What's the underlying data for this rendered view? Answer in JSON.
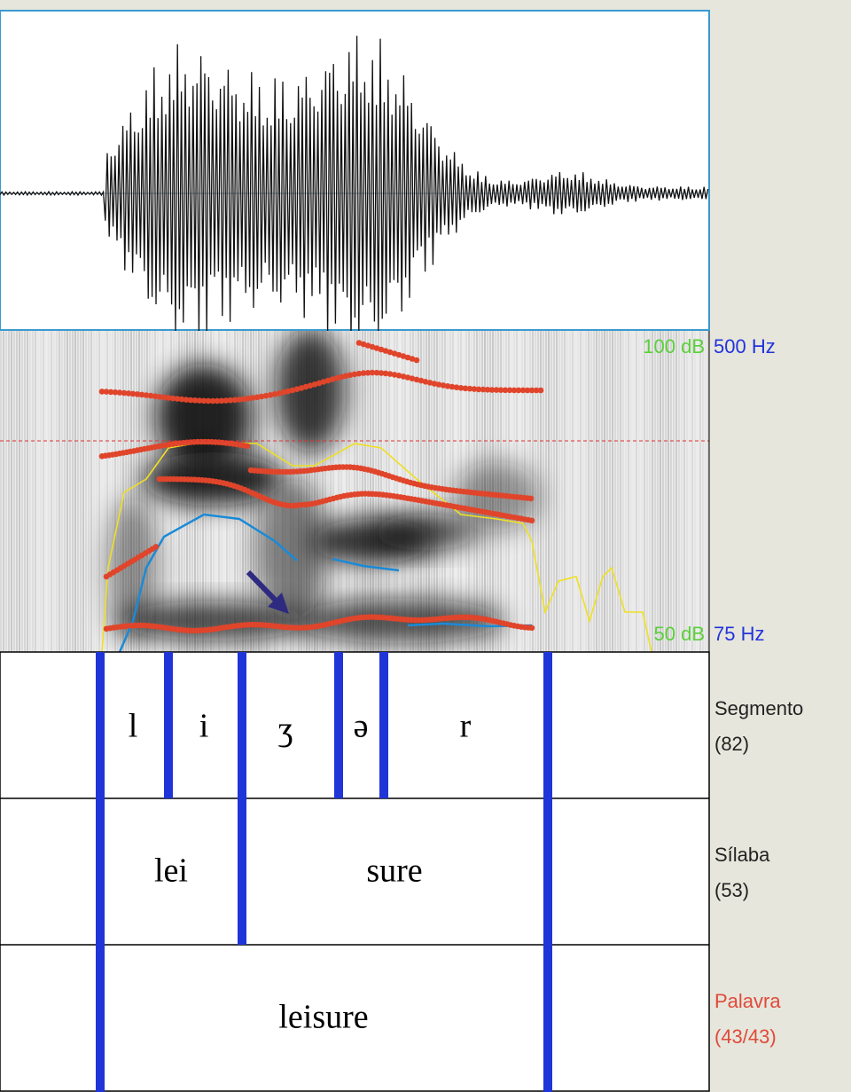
{
  "spectrogram": {
    "intensity_max": "100 dB",
    "pitch_max": "500 Hz",
    "intensity_min": "50 dB",
    "pitch_min": "75 Hz"
  },
  "tiers": [
    {
      "name": "Segmento",
      "count": "(82)",
      "intervals": [
        "l",
        "i",
        "ʒ",
        "ə",
        "r"
      ]
    },
    {
      "name": "Sílaba",
      "count": "(53)",
      "intervals": [
        "lei",
        "sure"
      ]
    },
    {
      "name": "Palavra",
      "count": "(43/43)",
      "intervals": [
        "leisure"
      ]
    }
  ]
}
